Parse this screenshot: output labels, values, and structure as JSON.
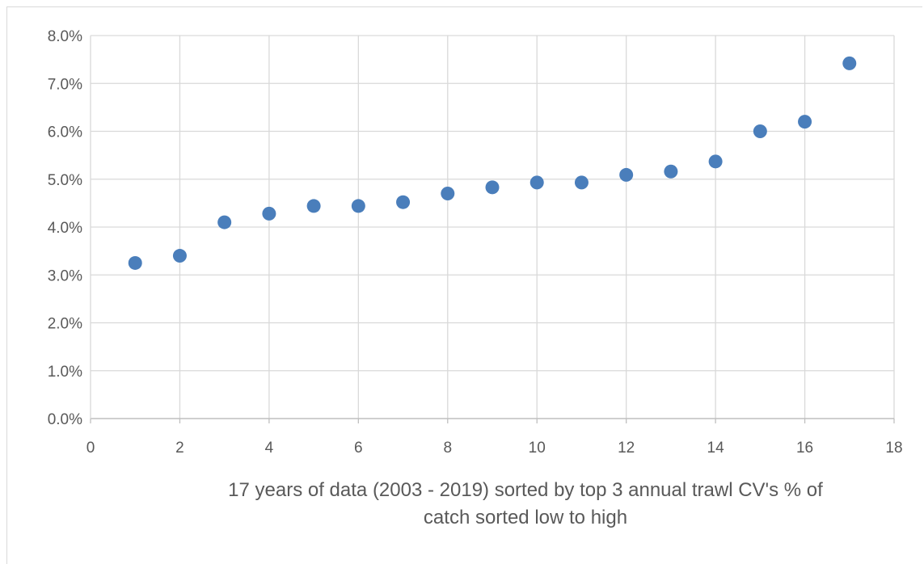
{
  "chart_data": {
    "type": "scatter",
    "title": "",
    "xlabel": "17 years of data (2003 - 2019) sorted by top 3 annual trawl CV's % of catch sorted low to high",
    "xlabel_lines": [
      "17 years of data (2003 - 2019) sorted by top 3 annual trawl CV's % of",
      "catch sorted low to high"
    ],
    "ylabel": "",
    "xlim": [
      0,
      18
    ],
    "ylim": [
      0,
      8
    ],
    "x_ticks": [
      0,
      2,
      4,
      6,
      8,
      10,
      12,
      14,
      16,
      18
    ],
    "x_tick_labels": [
      "0",
      "2",
      "4",
      "6",
      "8",
      "10",
      "12",
      "14",
      "16",
      "18"
    ],
    "y_ticks": [
      0,
      1,
      2,
      3,
      4,
      5,
      6,
      7,
      8
    ],
    "y_tick_labels": [
      "0.0%",
      "1.0%",
      "2.0%",
      "3.0%",
      "4.0%",
      "5.0%",
      "6.0%",
      "7.0%",
      "8.0%"
    ],
    "grid": "both",
    "legend": "none",
    "marker_color": "#4a7ebb",
    "x": [
      1,
      2,
      3,
      4,
      5,
      6,
      7,
      8,
      9,
      10,
      11,
      12,
      13,
      14,
      15,
      16,
      17
    ],
    "y": [
      3.25,
      3.4,
      4.1,
      4.28,
      4.44,
      4.44,
      4.52,
      4.7,
      4.83,
      4.93,
      4.93,
      5.09,
      5.16,
      5.37,
      6.0,
      6.2,
      7.42
    ]
  }
}
